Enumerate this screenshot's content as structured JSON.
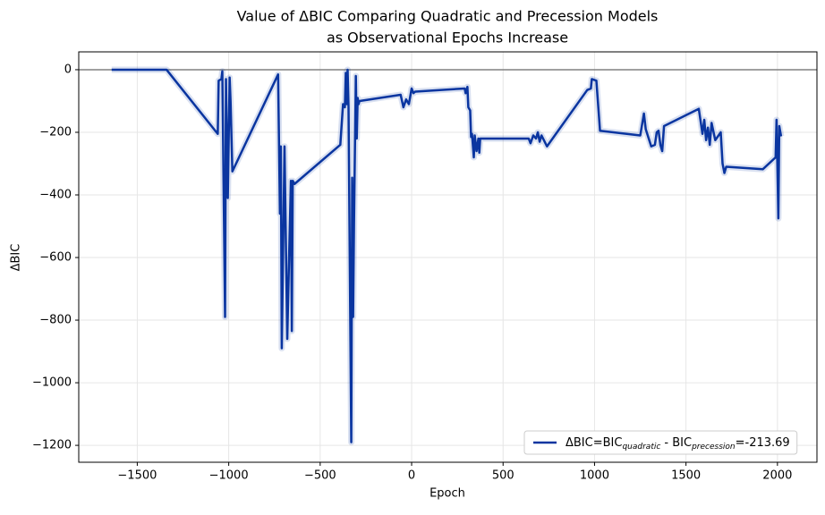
{
  "chart_data": {
    "type": "line",
    "title": [
      "Value of ΔBIC Comparing Quadratic and Precession Models",
      "as Observational Epochs Increase"
    ],
    "x_label": "Epoch",
    "y_label": "ΔBIC",
    "xlim": [
      -1820,
      2216
    ],
    "ylim": [
      -1254,
      57
    ],
    "xticks": [
      {
        "value": -1500,
        "label": "−1500"
      },
      {
        "value": -1000,
        "label": "−1000"
      },
      {
        "value": -500,
        "label": "−500"
      },
      0,
      500,
      1000,
      1500,
      2000
    ],
    "yticks": [
      0,
      {
        "value": -200,
        "label": "−200"
      },
      {
        "value": -400,
        "label": "−400"
      },
      {
        "value": -600,
        "label": "−600"
      },
      {
        "value": -800,
        "label": "−800"
      },
      {
        "value": -1000,
        "label": "−1000"
      },
      {
        "value": -1200,
        "label": "−1200"
      }
    ],
    "grid": true,
    "hline": 0,
    "hline_color": "#808080",
    "legend": "lower right",
    "series": [
      {
        "name": [
          "ΔBIC=BIC",
          {
            "sub": "quadratic"
          },
          " - BIC",
          {
            "sub": "precession"
          },
          "=-213.69"
        ],
        "color": "#0a35a0",
        "x": [
          -1640,
          -1340,
          -1060,
          -1055,
          -1040,
          -1035,
          -1020,
          -1015,
          -1005,
          -995,
          -990,
          -980,
          -730,
          -720,
          -715,
          -710,
          -695,
          -680,
          -670,
          -660,
          -655,
          -650,
          -640,
          -390,
          -375,
          -365,
          -360,
          -355,
          -350,
          -345,
          -330,
          -325,
          -320,
          -315,
          -305,
          -300,
          -295,
          -290,
          -285,
          -60,
          -45,
          -30,
          -15,
          0,
          10,
          20,
          290,
          295,
          305,
          310,
          320,
          325,
          330,
          340,
          345,
          355,
          365,
          370,
          375,
          640,
          650,
          665,
          680,
          690,
          700,
          710,
          740,
          960,
          980,
          985,
          1010,
          1030,
          1250,
          1270,
          1280,
          1310,
          1330,
          1340,
          1350,
          1360,
          1370,
          1380,
          1570,
          1590,
          1600,
          1610,
          1620,
          1630,
          1640,
          1660,
          1690,
          1700,
          1710,
          1720,
          1920,
          1990,
          1995,
          2005,
          2010,
          2020
        ],
        "values": [
          0,
          0,
          -205,
          -35,
          -30,
          -5,
          -790,
          -30,
          -410,
          -25,
          -100,
          -325,
          -15,
          -460,
          -245,
          -890,
          -245,
          -860,
          -600,
          -355,
          -835,
          -355,
          -365,
          -240,
          -110,
          -120,
          -10,
          -110,
          0,
          -120,
          -1190,
          -345,
          -790,
          -490,
          -20,
          -220,
          -90,
          -110,
          -100,
          -80,
          -120,
          -95,
          -110,
          -60,
          -75,
          -70,
          -60,
          -75,
          -55,
          -120,
          -130,
          -215,
          -205,
          -280,
          -210,
          -260,
          -220,
          -265,
          -220,
          -220,
          -235,
          -210,
          -220,
          -200,
          -230,
          -210,
          -245,
          -65,
          -60,
          -30,
          -35,
          -195,
          -210,
          -140,
          -190,
          -245,
          -240,
          -200,
          -195,
          -240,
          -260,
          -180,
          -125,
          -205,
          -160,
          -225,
          -185,
          -240,
          -170,
          -225,
          -200,
          -300,
          -330,
          -310,
          -318,
          -280,
          -160,
          -475,
          -180,
          -213
        ]
      }
    ]
  }
}
